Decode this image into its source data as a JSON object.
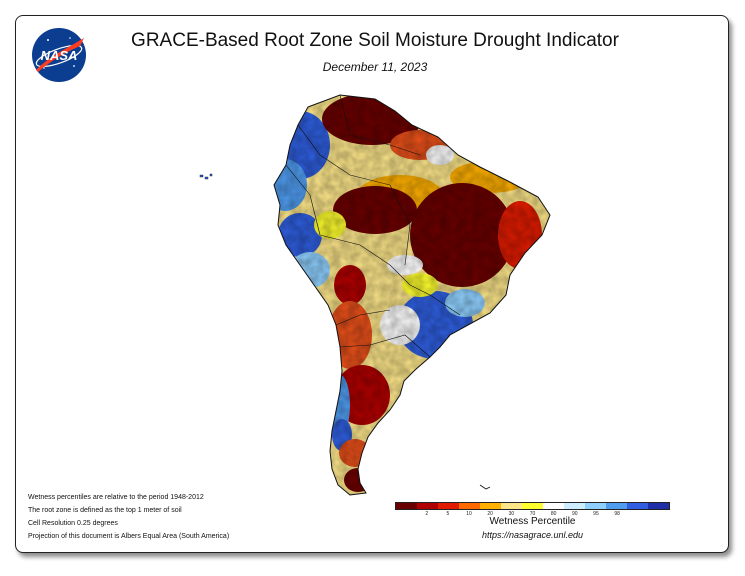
{
  "header": {
    "logo_text": "NASA",
    "title": "GRACE-Based Root Zone Soil Moisture Drought Indicator",
    "date": "December 11, 2023"
  },
  "notes": [
    "Wetness percentiles are relative to the period 1948-2012",
    "The root zone is defined as the top 1 meter of soil",
    "Cell Resolution 0.25 degrees",
    "Projection of this document is Albers Equal Area (South America)"
  ],
  "legend": {
    "label": "Wetness Percentile",
    "url": "https://nasagrace.unl.edu",
    "colors": [
      "#6b0000",
      "#b00000",
      "#e01b00",
      "#ff6a00",
      "#ffb000",
      "#fde68a",
      "#ffff2e",
      "#ffffff",
      "#cceeff",
      "#8fd0ff",
      "#4f9cf0",
      "#2f5fe0",
      "#1f2fa8"
    ],
    "ticks": [
      "2",
      "5",
      "10",
      "20",
      "30",
      "70",
      "80",
      "90",
      "95",
      "98"
    ]
  },
  "map": {
    "region": "South America",
    "colors": {
      "extreme_dry": "#6b0000",
      "severe_dry": "#b00000",
      "moderate_dry": "#e8501a",
      "mild_dry": "#ffb000",
      "abnormal_dry": "#fde68a",
      "near_normal": "#ffffff",
      "wet": "#8fd0ff",
      "very_wet": "#2f5fe0"
    }
  }
}
